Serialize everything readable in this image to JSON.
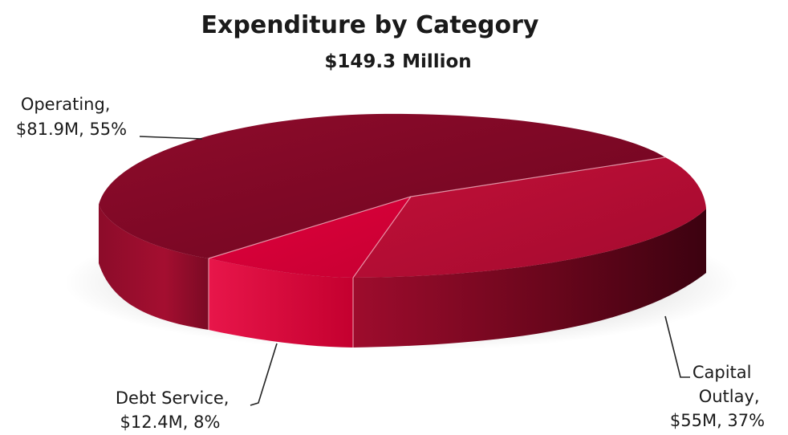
{
  "chart_data": {
    "type": "pie",
    "title": "Expenditure by Category",
    "subtitle": "$149.3 Million",
    "style": "3d",
    "slices": [
      {
        "category": "Operating",
        "value": 81.9,
        "percent": 55,
        "color": "#8a0a2a",
        "label_lines": [
          "Operating,",
          "$81.9M, 55%"
        ]
      },
      {
        "category": "Capital Outlay",
        "value": 55,
        "percent": 37,
        "color": "#b30d33",
        "label_lines": [
          "Capital",
          "Outlay,",
          "$55M, 37%"
        ]
      },
      {
        "category": "Debt Service",
        "value": 12.4,
        "percent": 8,
        "color": "#d8003a",
        "label_lines": [
          "Debt Service,",
          "$12.4M, 8%"
        ]
      }
    ]
  }
}
